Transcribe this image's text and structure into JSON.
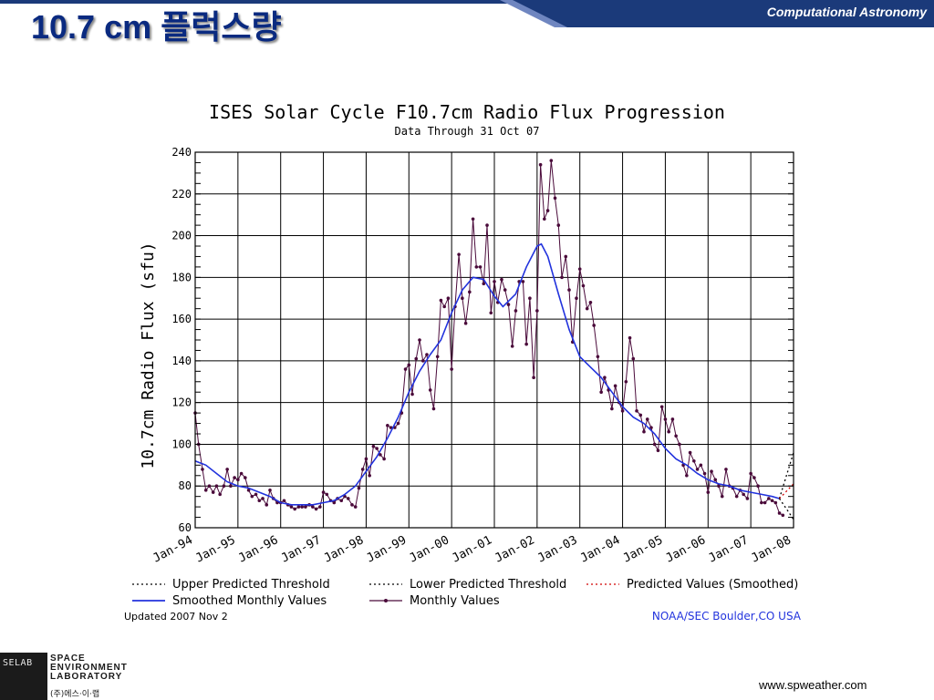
{
  "slide": {
    "title": "10.7 cm  플럭스량",
    "header_label": "Computational Astronomy",
    "website": "www.spweather.com",
    "logo": {
      "abbr": "SELAB",
      "lines": [
        "SPACE",
        "ENVIRONMENT",
        "LABORATORY"
      ],
      "korean": "(주)에스·이·랩"
    },
    "colors": {
      "header_blue": "#1b3a7a",
      "title_blue": "#0a2a80"
    }
  },
  "chart_data": {
    "type": "line",
    "title": "ISES Solar Cycle F10.7cm Radio Flux Progression",
    "subtitle": "Data Through 31 Oct 07",
    "ylabel": "10.7cm Radio Flux (sfu)",
    "xlabel": "",
    "xlim": [
      1994.0,
      2008.0
    ],
    "ylim": [
      60,
      240
    ],
    "y_ticks": [
      60,
      80,
      100,
      120,
      140,
      160,
      180,
      200,
      220,
      240
    ],
    "x_ticks": [
      {
        "x": 1994,
        "label": "Jan-94"
      },
      {
        "x": 1995,
        "label": "Jan-95"
      },
      {
        "x": 1996,
        "label": "Jan-96"
      },
      {
        "x": 1997,
        "label": "Jan-97"
      },
      {
        "x": 1998,
        "label": "Jan-98"
      },
      {
        "x": 1999,
        "label": "Jan-99"
      },
      {
        "x": 2000,
        "label": "Jan-00"
      },
      {
        "x": 2001,
        "label": "Jan-01"
      },
      {
        "x": 2002,
        "label": "Jan-02"
      },
      {
        "x": 2003,
        "label": "Jan-03"
      },
      {
        "x": 2004,
        "label": "Jan-04"
      },
      {
        "x": 2005,
        "label": "Jan-05"
      },
      {
        "x": 2006,
        "label": "Jan-06"
      },
      {
        "x": 2007,
        "label": "Jan-07"
      },
      {
        "x": 2008,
        "label": "Jan-08"
      }
    ],
    "grid": true,
    "legend": [
      {
        "name": "Upper Predicted Threshold",
        "style": "dotted",
        "color": "#000000"
      },
      {
        "name": "Lower Predicted Threshold",
        "style": "dotted",
        "color": "#000000"
      },
      {
        "name": "Predicted Values (Smoothed)",
        "style": "dotted",
        "color": "#d00000"
      },
      {
        "name": "Smoothed Monthly Values",
        "style": "solid",
        "color": "#2233dd"
      },
      {
        "name": "Monthly Values",
        "style": "marker-line",
        "color": "#4a0a3a"
      }
    ],
    "legend_position": "bottom",
    "footer_left": "Updated 2007 Nov  2",
    "footer_right": "NOAA/SEC Boulder,CO USA",
    "series": [
      {
        "name": "Monthly Values",
        "color": "#4a0a3a",
        "points": [
          [
            1994.0,
            115
          ],
          [
            1994.08,
            100
          ],
          [
            1994.17,
            88
          ],
          [
            1994.25,
            78
          ],
          [
            1994.33,
            80
          ],
          [
            1994.42,
            77
          ],
          [
            1994.5,
            80
          ],
          [
            1994.58,
            76
          ],
          [
            1994.67,
            80
          ],
          [
            1994.75,
            88
          ],
          [
            1994.83,
            80
          ],
          [
            1994.92,
            84
          ],
          [
            1995.0,
            83
          ],
          [
            1995.08,
            86
          ],
          [
            1995.17,
            84
          ],
          [
            1995.25,
            78
          ],
          [
            1995.33,
            75
          ],
          [
            1995.42,
            76
          ],
          [
            1995.5,
            73
          ],
          [
            1995.58,
            74
          ],
          [
            1995.67,
            71
          ],
          [
            1995.75,
            78
          ],
          [
            1995.83,
            74
          ],
          [
            1995.92,
            72
          ],
          [
            1996.0,
            72
          ],
          [
            1996.08,
            73
          ],
          [
            1996.17,
            71
          ],
          [
            1996.25,
            70
          ],
          [
            1996.33,
            69
          ],
          [
            1996.42,
            70
          ],
          [
            1996.5,
            70
          ],
          [
            1996.58,
            70
          ],
          [
            1996.67,
            71
          ],
          [
            1996.75,
            70
          ],
          [
            1996.83,
            69
          ],
          [
            1996.92,
            70
          ],
          [
            1997.0,
            77
          ],
          [
            1997.08,
            76
          ],
          [
            1997.17,
            73
          ],
          [
            1997.25,
            72
          ],
          [
            1997.33,
            74
          ],
          [
            1997.42,
            73
          ],
          [
            1997.5,
            75
          ],
          [
            1997.58,
            74
          ],
          [
            1997.67,
            71
          ],
          [
            1997.75,
            70
          ],
          [
            1997.83,
            79
          ],
          [
            1997.92,
            88
          ],
          [
            1998.0,
            93
          ],
          [
            1998.08,
            85
          ],
          [
            1998.17,
            99
          ],
          [
            1998.25,
            98
          ],
          [
            1998.33,
            95
          ],
          [
            1998.42,
            93
          ],
          [
            1998.5,
            109
          ],
          [
            1998.58,
            108
          ],
          [
            1998.67,
            108
          ],
          [
            1998.75,
            110
          ],
          [
            1998.83,
            115
          ],
          [
            1998.92,
            136
          ],
          [
            1999.0,
            138
          ],
          [
            1999.08,
            124
          ],
          [
            1999.17,
            141
          ],
          [
            1999.25,
            150
          ],
          [
            1999.33,
            140
          ],
          [
            1999.42,
            143
          ],
          [
            1999.5,
            126
          ],
          [
            1999.58,
            117
          ],
          [
            1999.67,
            142
          ],
          [
            1999.75,
            169
          ],
          [
            1999.83,
            166
          ],
          [
            1999.92,
            170
          ],
          [
            2000.0,
            136
          ],
          [
            2000.08,
            166
          ],
          [
            2000.17,
            191
          ],
          [
            2000.25,
            170
          ],
          [
            2000.33,
            158
          ],
          [
            2000.42,
            173
          ],
          [
            2000.5,
            208
          ],
          [
            2000.58,
            185
          ],
          [
            2000.67,
            185
          ],
          [
            2000.75,
            177
          ],
          [
            2000.83,
            205
          ],
          [
            2000.92,
            163
          ],
          [
            2001.0,
            178
          ],
          [
            2001.08,
            168
          ],
          [
            2001.17,
            179
          ],
          [
            2001.25,
            174
          ],
          [
            2001.33,
            167
          ],
          [
            2001.42,
            147
          ],
          [
            2001.5,
            164
          ],
          [
            2001.58,
            178
          ],
          [
            2001.67,
            178
          ],
          [
            2001.75,
            148
          ],
          [
            2001.83,
            170
          ],
          [
            2001.92,
            132
          ],
          [
            2002.0,
            164
          ],
          [
            2002.08,
            234
          ],
          [
            2002.17,
            208
          ],
          [
            2002.25,
            212
          ],
          [
            2002.33,
            236
          ],
          [
            2002.42,
            218
          ],
          [
            2002.5,
            205
          ],
          [
            2002.58,
            180
          ],
          [
            2002.67,
            190
          ],
          [
            2002.75,
            174
          ],
          [
            2002.83,
            149
          ],
          [
            2002.92,
            170
          ],
          [
            2003.0,
            184
          ],
          [
            2003.08,
            176
          ],
          [
            2003.17,
            165
          ],
          [
            2003.25,
            168
          ],
          [
            2003.33,
            157
          ],
          [
            2003.42,
            142
          ],
          [
            2003.5,
            125
          ],
          [
            2003.58,
            132
          ],
          [
            2003.67,
            126
          ],
          [
            2003.75,
            117
          ],
          [
            2003.83,
            128
          ],
          [
            2003.92,
            120
          ],
          [
            2004.0,
            116
          ],
          [
            2004.08,
            130
          ],
          [
            2004.17,
            151
          ],
          [
            2004.25,
            141
          ],
          [
            2004.33,
            116
          ],
          [
            2004.42,
            114
          ],
          [
            2004.5,
            106
          ],
          [
            2004.58,
            112
          ],
          [
            2004.67,
            108
          ],
          [
            2004.75,
            100
          ],
          [
            2004.83,
            97
          ],
          [
            2004.92,
            118
          ],
          [
            2005.0,
            112
          ],
          [
            2005.08,
            106
          ],
          [
            2005.17,
            112
          ],
          [
            2005.25,
            104
          ],
          [
            2005.33,
            100
          ],
          [
            2005.42,
            90
          ],
          [
            2005.5,
            85
          ],
          [
            2005.58,
            96
          ],
          [
            2005.67,
            92
          ],
          [
            2005.75,
            88
          ],
          [
            2005.83,
            90
          ],
          [
            2005.92,
            86
          ],
          [
            2006.0,
            77
          ],
          [
            2006.08,
            87
          ],
          [
            2006.17,
            83
          ],
          [
            2006.25,
            80
          ],
          [
            2006.33,
            75
          ],
          [
            2006.42,
            88
          ],
          [
            2006.5,
            80
          ],
          [
            2006.58,
            79
          ],
          [
            2006.67,
            75
          ],
          [
            2006.75,
            78
          ],
          [
            2006.83,
            76
          ],
          [
            2006.92,
            74
          ],
          [
            2007.0,
            86
          ],
          [
            2007.08,
            84
          ],
          [
            2007.17,
            80
          ],
          [
            2007.25,
            72
          ],
          [
            2007.33,
            72
          ],
          [
            2007.42,
            74
          ],
          [
            2007.5,
            73
          ],
          [
            2007.58,
            72
          ],
          [
            2007.67,
            67
          ],
          [
            2007.75,
            66
          ]
        ]
      },
      {
        "name": "Smoothed Monthly Values",
        "color": "#2233dd",
        "points": [
          [
            1994.0,
            92
          ],
          [
            1994.25,
            90
          ],
          [
            1994.5,
            86
          ],
          [
            1994.75,
            82
          ],
          [
            1995.0,
            80
          ],
          [
            1995.25,
            79
          ],
          [
            1995.5,
            77
          ],
          [
            1995.75,
            75
          ],
          [
            1996.0,
            72
          ],
          [
            1996.25,
            71
          ],
          [
            1996.5,
            71
          ],
          [
            1996.75,
            71
          ],
          [
            1997.0,
            72
          ],
          [
            1997.25,
            73
          ],
          [
            1997.5,
            76
          ],
          [
            1997.75,
            80
          ],
          [
            1998.0,
            87
          ],
          [
            1998.25,
            94
          ],
          [
            1998.5,
            103
          ],
          [
            1998.75,
            113
          ],
          [
            1999.0,
            125
          ],
          [
            1999.25,
            135
          ],
          [
            1999.5,
            143
          ],
          [
            1999.75,
            150
          ],
          [
            2000.0,
            163
          ],
          [
            2000.25,
            174
          ],
          [
            2000.5,
            180
          ],
          [
            2000.75,
            179
          ],
          [
            2001.0,
            171
          ],
          [
            2001.2,
            166
          ],
          [
            2001.5,
            172
          ],
          [
            2001.75,
            185
          ],
          [
            2002.0,
            195
          ],
          [
            2002.1,
            196
          ],
          [
            2002.25,
            190
          ],
          [
            2002.5,
            172
          ],
          [
            2002.75,
            155
          ],
          [
            2003.0,
            142
          ],
          [
            2003.25,
            137
          ],
          [
            2003.5,
            132
          ],
          [
            2003.75,
            125
          ],
          [
            2004.0,
            118
          ],
          [
            2004.25,
            113
          ],
          [
            2004.5,
            110
          ],
          [
            2004.75,
            105
          ],
          [
            2005.0,
            98
          ],
          [
            2005.25,
            93
          ],
          [
            2005.5,
            90
          ],
          [
            2005.75,
            86
          ],
          [
            2006.0,
            83
          ],
          [
            2006.25,
            81
          ],
          [
            2006.5,
            80
          ],
          [
            2006.75,
            78
          ],
          [
            2007.0,
            77
          ],
          [
            2007.25,
            76
          ],
          [
            2007.5,
            75
          ],
          [
            2007.67,
            74
          ]
        ]
      },
      {
        "name": "Upper Predicted Threshold",
        "color": "#000000",
        "points": [
          [
            2007.67,
            74
          ],
          [
            2008.0,
            96
          ]
        ]
      },
      {
        "name": "Predicted Values (Smoothed)",
        "color": "#d00000",
        "points": [
          [
            2007.67,
            74
          ],
          [
            2008.0,
            81
          ]
        ]
      },
      {
        "name": "Lower Predicted Threshold",
        "color": "#000000",
        "points": [
          [
            2007.67,
            74
          ],
          [
            2008.0,
            64
          ]
        ]
      }
    ]
  }
}
